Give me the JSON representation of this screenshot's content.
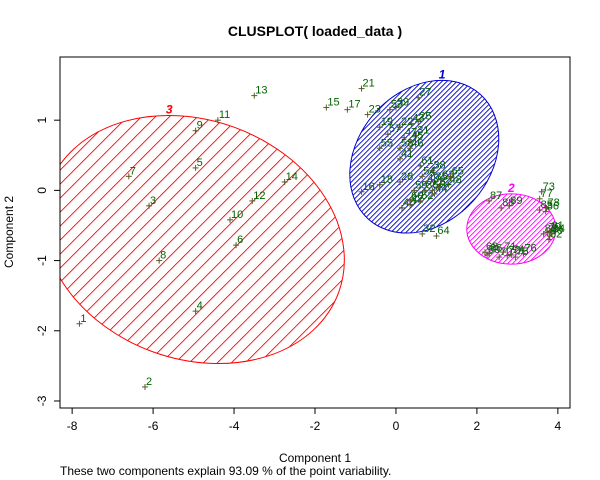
{
  "chart_data": {
    "type": "scatter",
    "title": "CLUSPLOT( loaded_data )",
    "xlabel": "Component 1",
    "ylabel": "Component 2",
    "subtitle": "These two components explain 93.09 % of the point variability.",
    "xlim": [
      -8.3,
      4.3
    ],
    "ylim": [
      -3.1,
      1.9
    ],
    "xticks": [
      -8,
      -6,
      -4,
      -2,
      0,
      2,
      4
    ],
    "yticks": [
      -3,
      -2,
      -1,
      0,
      1
    ],
    "grid": false,
    "clusters": [
      {
        "label": "1",
        "color": "#0000CD",
        "shading": "dense",
        "ellipse": {
          "cx": 0.7,
          "cy": 0.48,
          "rx": 2.07,
          "ry": 0.94,
          "angle_deg": -48
        }
      },
      {
        "label": "2",
        "color": "#FF00FF",
        "shading": "dense",
        "ellipse": {
          "cx": 2.85,
          "cy": -0.55,
          "rx": 1.1,
          "ry": 0.5,
          "angle_deg": 0
        }
      },
      {
        "label": "3",
        "color": "#FF0000",
        "shading": "sparse",
        "ellipse": {
          "cx": -5.0,
          "cy": -0.7,
          "rx": 2.95,
          "ry": 2.2,
          "angle_deg": -70
        }
      }
    ],
    "points": [
      {
        "id": "1",
        "x": -7.82,
        "y": -1.9,
        "cluster": 3
      },
      {
        "id": "2",
        "x": -6.2,
        "y": -2.8,
        "cluster": 3
      },
      {
        "id": "3",
        "x": -6.1,
        "y": -0.22,
        "cluster": 3
      },
      {
        "id": "4",
        "x": -4.95,
        "y": -1.72,
        "cluster": 3
      },
      {
        "id": "5",
        "x": -4.95,
        "y": 0.32,
        "cluster": 3
      },
      {
        "id": "6",
        "x": -3.95,
        "y": -0.78,
        "cluster": 3
      },
      {
        "id": "7",
        "x": -6.6,
        "y": 0.2,
        "cluster": 3
      },
      {
        "id": "8",
        "x": -5.85,
        "y": -1.0,
        "cluster": 3
      },
      {
        "id": "9",
        "x": -4.95,
        "y": 0.85,
        "cluster": 3
      },
      {
        "id": "10",
        "x": -4.1,
        "y": -0.42,
        "cluster": 3
      },
      {
        "id": "11",
        "x": -4.4,
        "y": 1.0,
        "cluster": 3
      },
      {
        "id": "12",
        "x": -3.55,
        "y": -0.15,
        "cluster": 3
      },
      {
        "id": "13",
        "x": -3.5,
        "y": 1.35,
        "cluster": 3
      },
      {
        "id": "14",
        "x": -2.75,
        "y": 0.12,
        "cluster": 3
      },
      {
        "id": "15",
        "x": -1.72,
        "y": 1.18,
        "cluster": 1
      },
      {
        "id": "16",
        "x": -0.85,
        "y": -0.02,
        "cluster": 1
      },
      {
        "id": "17",
        "x": -1.2,
        "y": 1.15,
        "cluster": 1
      },
      {
        "id": "18",
        "x": -0.4,
        "y": 0.08,
        "cluster": 1
      },
      {
        "id": "19",
        "x": -0.4,
        "y": 0.9,
        "cluster": 1
      },
      {
        "id": "21",
        "x": -0.85,
        "y": 1.45,
        "cluster": 1
      },
      {
        "id": "22",
        "x": 0.1,
        "y": 0.9,
        "cluster": 1
      },
      {
        "id": "23",
        "x": -0.7,
        "y": 1.08,
        "cluster": 1
      },
      {
        "id": "25",
        "x": 0.55,
        "y": 0.98,
        "cluster": 1
      },
      {
        "id": "27",
        "x": 0.55,
        "y": 1.32,
        "cluster": 1
      },
      {
        "id": "28",
        "x": 0.1,
        "y": 0.12,
        "cluster": 1
      },
      {
        "id": "31",
        "x": 0.5,
        "y": 0.78,
        "cluster": 1
      },
      {
        "id": "32",
        "x": 0.65,
        "y": -0.62,
        "cluster": 1
      },
      {
        "id": "35",
        "x": 0.95,
        "y": 0.12,
        "cluster": 1
      },
      {
        "id": "36",
        "x": 0.72,
        "y": 0.0,
        "cluster": 1
      },
      {
        "id": "38",
        "x": 0.9,
        "y": 0.28,
        "cluster": 1
      },
      {
        "id": "39",
        "x": 0.0,
        "y": 1.18,
        "cluster": 1
      },
      {
        "id": "40",
        "x": 0.15,
        "y": -0.25,
        "cluster": 1
      },
      {
        "id": "41",
        "x": 0.1,
        "y": 0.45,
        "cluster": 1
      },
      {
        "id": "42",
        "x": 0.35,
        "y": -0.2,
        "cluster": 1
      },
      {
        "id": "43",
        "x": 0.38,
        "y": 0.95,
        "cluster": 1
      },
      {
        "id": "44",
        "x": 0.95,
        "y": -0.05,
        "cluster": 1
      },
      {
        "id": "45",
        "x": 0.35,
        "y": 0.7,
        "cluster": 1
      },
      {
        "id": "46",
        "x": 0.35,
        "y": 0.6,
        "cluster": 1
      },
      {
        "id": "47",
        "x": 0.2,
        "y": 0.75,
        "cluster": 1
      },
      {
        "id": "48",
        "x": 1.3,
        "y": 0.08,
        "cluster": 1
      },
      {
        "id": "49",
        "x": 0.75,
        "y": 0.1,
        "cluster": 1
      },
      {
        "id": "52",
        "x": 0.6,
        "y": -0.15,
        "cluster": 1
      },
      {
        "id": "53",
        "x": -0.15,
        "y": 1.15,
        "cluster": 1
      },
      {
        "id": "54",
        "x": 0.65,
        "y": 0.2,
        "cluster": 1
      },
      {
        "id": "55",
        "x": -0.4,
        "y": 0.6,
        "cluster": 1
      },
      {
        "id": "56",
        "x": 0.9,
        "y": 0.0,
        "cluster": 1
      },
      {
        "id": "57",
        "x": -0.2,
        "y": 0.8,
        "cluster": 1
      },
      {
        "id": "58",
        "x": 0.1,
        "y": 0.6,
        "cluster": 1
      },
      {
        "id": "59",
        "x": 0.45,
        "y": 0.0,
        "cluster": 1
      },
      {
        "id": "60",
        "x": 0.35,
        "y": -0.15,
        "cluster": 1
      },
      {
        "id": "61",
        "x": 0.6,
        "y": 0.35,
        "cluster": 1
      },
      {
        "id": "62",
        "x": 1.05,
        "y": 0.05,
        "cluster": 1
      },
      {
        "id": "63",
        "x": 1.12,
        "y": 0.15,
        "cluster": 1
      },
      {
        "id": "64",
        "x": 1.0,
        "y": -0.65,
        "cluster": 1
      },
      {
        "id": "65",
        "x": 1.35,
        "y": 0.2,
        "cluster": 1
      },
      {
        "id": "66",
        "x": 2.3,
        "y": -0.9,
        "cluster": 2
      },
      {
        "id": "68",
        "x": 2.2,
        "y": -0.88,
        "cluster": 2
      },
      {
        "id": "69",
        "x": 2.25,
        "y": -0.92,
        "cluster": 2
      },
      {
        "id": "70",
        "x": 2.55,
        "y": -0.95,
        "cluster": 2
      },
      {
        "id": "71",
        "x": 2.65,
        "y": -0.88,
        "cluster": 2
      },
      {
        "id": "72",
        "x": 2.75,
        "y": -0.93,
        "cluster": 2
      },
      {
        "id": "73",
        "x": 3.6,
        "y": -0.02,
        "cluster": 2
      },
      {
        "id": "74",
        "x": 2.85,
        "y": -0.92,
        "cluster": 2
      },
      {
        "id": "75",
        "x": 2.95,
        "y": -0.95,
        "cluster": 2
      },
      {
        "id": "76",
        "x": 3.15,
        "y": -0.9,
        "cluster": 2
      },
      {
        "id": "77",
        "x": 3.55,
        "y": -0.12,
        "cluster": 2
      },
      {
        "id": "78",
        "x": 3.72,
        "y": -0.25,
        "cluster": 2
      },
      {
        "id": "79",
        "x": 3.75,
        "y": -0.6,
        "cluster": 2
      },
      {
        "id": "80",
        "x": 3.8,
        "y": -0.65,
        "cluster": 2
      },
      {
        "id": "81",
        "x": 3.82,
        "y": -0.58,
        "cluster": 2
      },
      {
        "id": "82",
        "x": 3.78,
        "y": -0.7,
        "cluster": 2
      },
      {
        "id": "83",
        "x": 3.65,
        "y": -0.62,
        "cluster": 2
      },
      {
        "id": "84",
        "x": 3.85,
        "y": -0.62,
        "cluster": 2
      },
      {
        "id": "85",
        "x": 3.55,
        "y": -0.28,
        "cluster": 2
      },
      {
        "id": "86",
        "x": 3.7,
        "y": -0.3,
        "cluster": 2
      },
      {
        "id": "87",
        "x": 2.3,
        "y": -0.15,
        "cluster": 2
      },
      {
        "id": "88",
        "x": 2.6,
        "y": -0.25,
        "cluster": 2
      },
      {
        "id": "89",
        "x": 2.8,
        "y": -0.22,
        "cluster": 2
      }
    ]
  },
  "colors": {
    "points": "#006400",
    "axis": "#000000",
    "background": "#ffffff"
  }
}
